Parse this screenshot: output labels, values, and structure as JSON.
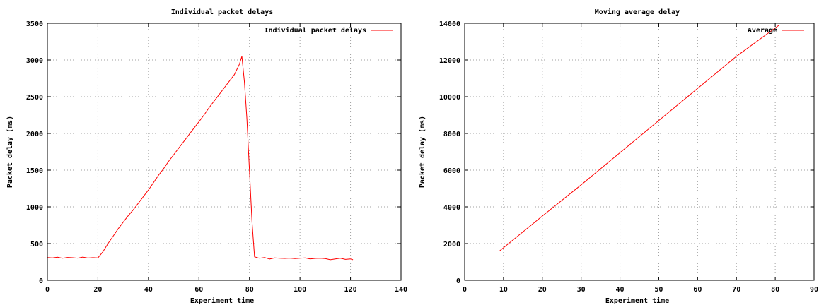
{
  "chart_data": [
    {
      "type": "line",
      "title": "Individual packet delays",
      "xlabel": "Experiment time",
      "ylabel": "Packet delay (ms)",
      "xlim": [
        0,
        140
      ],
      "ylim": [
        0,
        3500
      ],
      "xticks": [
        0,
        20,
        40,
        60,
        80,
        100,
        120,
        140
      ],
      "yticks": [
        0,
        500,
        1000,
        1500,
        2000,
        2500,
        3000,
        3500
      ],
      "grid": true,
      "legend": "top-right",
      "series": [
        {
          "name": "Individual packet delays",
          "color": "#ff0000",
          "x": [
            0,
            2,
            4,
            6,
            8,
            10,
            12,
            14,
            16,
            18,
            20,
            22,
            24,
            26,
            28,
            30,
            32,
            34,
            36,
            38,
            40,
            42,
            44,
            46,
            48,
            50,
            52,
            54,
            56,
            58,
            60,
            62,
            64,
            66,
            68,
            70,
            72,
            74,
            75,
            76,
            77,
            78,
            79,
            80,
            81,
            82,
            84,
            86,
            88,
            90,
            92,
            94,
            96,
            98,
            100,
            102,
            104,
            106,
            108,
            110,
            112,
            114,
            116,
            118,
            120,
            121
          ],
          "y": [
            310,
            305,
            315,
            300,
            312,
            308,
            302,
            316,
            304,
            309,
            305,
            390,
            500,
            600,
            700,
            790,
            880,
            960,
            1050,
            1140,
            1230,
            1330,
            1430,
            1520,
            1620,
            1710,
            1800,
            1890,
            1980,
            2070,
            2160,
            2250,
            2350,
            2440,
            2530,
            2620,
            2710,
            2800,
            2870,
            2940,
            3050,
            2700,
            2200,
            1500,
            800,
            320,
            300,
            310,
            290,
            305,
            300,
            298,
            302,
            295,
            300,
            305,
            290,
            298,
            300,
            295,
            280,
            290,
            300,
            285,
            290,
            280
          ]
        }
      ]
    },
    {
      "type": "line",
      "title": "Moving average delay",
      "xlabel": "Experiment time",
      "ylabel": "Packet delay (ms)",
      "xlim": [
        0,
        90
      ],
      "ylim": [
        0,
        14000
      ],
      "xticks": [
        0,
        10,
        20,
        30,
        40,
        50,
        60,
        70,
        80,
        90
      ],
      "yticks": [
        0,
        2000,
        4000,
        6000,
        8000,
        10000,
        12000,
        14000
      ],
      "grid": true,
      "legend": "top-right",
      "series": [
        {
          "name": "Average",
          "color": "#ff0000",
          "x": [
            9,
            20,
            30,
            40,
            50,
            60,
            70,
            81
          ],
          "y": [
            1600,
            3500,
            5200,
            6950,
            8700,
            10450,
            12200,
            13900
          ]
        }
      ]
    }
  ]
}
